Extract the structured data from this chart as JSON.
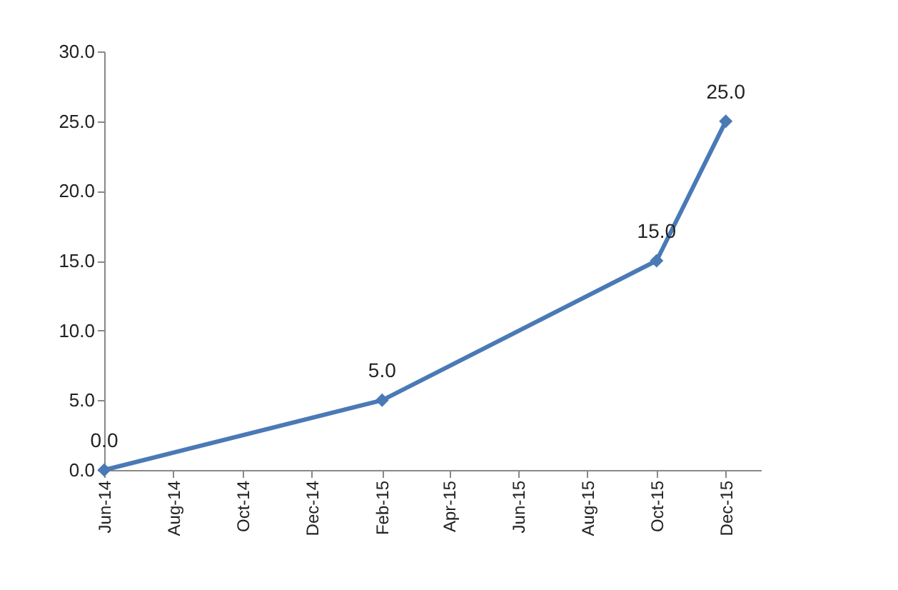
{
  "chart_data": {
    "type": "line",
    "x": [
      "2014-06",
      "2015-02",
      "2015-10",
      "2015-12"
    ],
    "series": [
      {
        "color": "#4a7ab5",
        "values": [
          0,
          5,
          15,
          25
        ],
        "value_labels": [
          "0.0",
          "5.0",
          "15.0",
          "25.0"
        ]
      }
    ],
    "xlim": [
      "2014-06",
      "2016-01"
    ],
    "xticks": [
      {
        "value": "2014-06",
        "label": "Jun-14"
      },
      {
        "value": "2014-08",
        "label": "Aug-14"
      },
      {
        "value": "2014-10",
        "label": "Oct-14"
      },
      {
        "value": "2014-12",
        "label": "Dec-14"
      },
      {
        "value": "2015-02",
        "label": "Feb-15"
      },
      {
        "value": "2015-04",
        "label": "Apr-15"
      },
      {
        "value": "2015-06",
        "label": "Jun-15"
      },
      {
        "value": "2015-08",
        "label": "Aug-15"
      },
      {
        "value": "2015-10",
        "label": "Oct-15"
      },
      {
        "value": "2015-12",
        "label": "Dec-15"
      }
    ],
    "ylim": [
      0,
      30
    ],
    "yticks": [
      {
        "value": 0,
        "label": "0.0"
      },
      {
        "value": 5,
        "label": "5.0"
      },
      {
        "value": 10,
        "label": "10.0"
      },
      {
        "value": 15,
        "label": "15.0"
      },
      {
        "value": 20,
        "label": "20.0"
      },
      {
        "value": 25,
        "label": "25.0"
      },
      {
        "value": 30,
        "label": "30.0"
      }
    ],
    "grid": false,
    "marker": "diamond",
    "line_style": "solid"
  }
}
